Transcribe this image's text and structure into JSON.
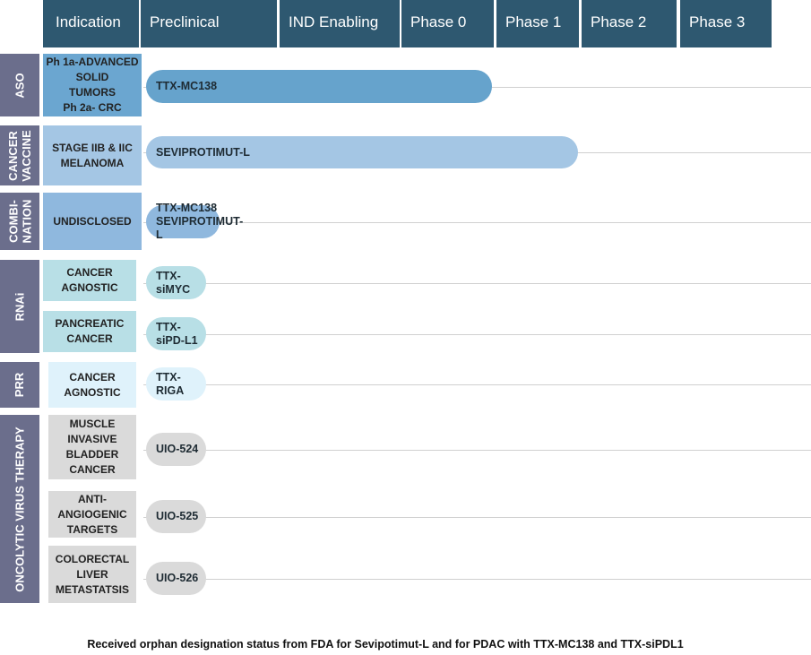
{
  "colors": {
    "header_bg": "#2e5870",
    "group_bg": "#6b6e8c",
    "grid_line": "#d0d0d0"
  },
  "chart_data": {
    "type": "bar",
    "orientation": "horizontal",
    "title": "",
    "categories": [
      "Indication",
      "Preclinical",
      "IND Enabling",
      "Phase 0",
      "Phase 1",
      "Phase 2",
      "Phase 3"
    ],
    "groups": [
      {
        "name": "ASO",
        "rows": [
          {
            "indication": "Ph 1a-ADVANCED\nSOLID\nTUMORS\nPh 2a- CRC",
            "program": "TTX-MC138",
            "stage": "Phase 1",
            "progress": 0.52,
            "color": "#66a3cc",
            "ind_color": "#6ba6d0"
          }
        ]
      },
      {
        "name": "CANCER\nVACCINE",
        "rows": [
          {
            "indication": "STAGE IIB & IIC\nMELANOMA",
            "program": "SEVIPROTIMUT-L",
            "stage": "Phase 2",
            "progress": 0.65,
            "color": "#a4c6e4",
            "ind_color": "#a4c6e4"
          }
        ]
      },
      {
        "name": "COMBI-\nNATION",
        "rows": [
          {
            "indication": "UNDISCLOSED",
            "program": "TTX-MC138\nSEVIPROTIMUT-L",
            "stage": "Preclinical",
            "progress": 0.11,
            "color": "#8fb8de",
            "ind_color": "#8fb8de"
          }
        ]
      },
      {
        "name": "RNAi",
        "rows": [
          {
            "indication": "CANCER\nAGNOSTIC",
            "program": "TTX-siMYC",
            "stage": "Preclinical",
            "progress": 0.09,
            "color": "#b8dfe6",
            "ind_color": "#b8dfe6"
          },
          {
            "indication": "PANCREATIC\nCANCER",
            "program": "TTX-siPD-L1",
            "stage": "Preclinical",
            "progress": 0.09,
            "color": "#b8dfe6",
            "ind_color": "#b8dfe6"
          }
        ]
      },
      {
        "name": "PRR",
        "rows": [
          {
            "indication": "CANCER\nAGNOSTIC",
            "program": "TTX-RIGA",
            "stage": "Preclinical",
            "progress": 0.09,
            "color": "#dff2fb",
            "ind_color": "#dff2fb"
          }
        ]
      },
      {
        "name": "ONCOLYTIC VIRUS THERAPY",
        "rows": [
          {
            "indication": "MUSCLE\nINVASIVE\nBLADDER\nCANCER",
            "program": "UIO-524",
            "stage": "Preclinical",
            "progress": 0.09,
            "color": "#dadada",
            "ind_color": "#dadada"
          },
          {
            "indication": "ANTI-\nANGIOGENIC\nTARGETS",
            "program": "UIO-525",
            "stage": "Preclinical",
            "progress": 0.09,
            "color": "#dadada",
            "ind_color": "#dadada"
          },
          {
            "indication": "COLORECTAL\nLIVER\nMETASTATSIS",
            "program": "UIO-526",
            "stage": "Preclinical",
            "progress": 0.09,
            "color": "#dadada",
            "ind_color": "#dadada"
          }
        ]
      }
    ],
    "footnote": "Received orphan designation status from FDA for Sevipotimut-L and for PDAC with TTX-MC138 and TTX-siPDL1"
  }
}
